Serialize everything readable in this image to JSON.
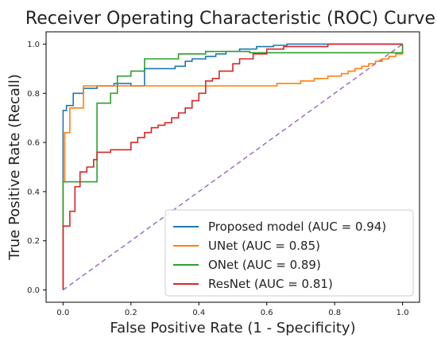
{
  "chart_data": {
    "type": "line",
    "title": "Receiver Operating Characteristic (ROC) Curve",
    "xlabel": "False Positive Rate (1 - Specificity)",
    "ylabel": "True Positive Rate (Recall)",
    "xlim": [
      -0.05,
      1.05
    ],
    "ylim": [
      -0.05,
      1.05
    ],
    "x_ticks": [
      0.0,
      0.2,
      0.4,
      0.6,
      0.8,
      1.0
    ],
    "x_tick_labels": [
      "0.0",
      "0.2",
      "0.4",
      "0.6",
      "0.8",
      "1.0"
    ],
    "y_ticks": [
      0.0,
      0.2,
      0.4,
      0.6,
      0.8,
      1.0
    ],
    "y_tick_labels": [
      "0.0",
      "0.2",
      "0.4",
      "0.6",
      "0.8",
      "1.0"
    ],
    "grid": false,
    "legend_position": "lower-right",
    "reference_line": {
      "x": [
        0,
        1
      ],
      "y": [
        0,
        1
      ],
      "color": "#9467bd",
      "style": "dashed"
    },
    "series": [
      {
        "name": "Proposed model (AUC = 0.94)",
        "color": "#1f77b4",
        "x": [
          0,
          0,
          0.01,
          0.01,
          0.03,
          0.03,
          0.06,
          0.06,
          0.1,
          0.1,
          0.15,
          0.15,
          0.2,
          0.2,
          0.24,
          0.24,
          0.33,
          0.33,
          0.36,
          0.36,
          0.38,
          0.38,
          0.42,
          0.42,
          0.45,
          0.45,
          0.48,
          0.48,
          0.52,
          0.52,
          0.57,
          0.57,
          0.62,
          0.62,
          0.66,
          0.66,
          1.0
        ],
        "y": [
          0,
          0.73,
          0.73,
          0.75,
          0.75,
          0.8,
          0.8,
          0.82,
          0.82,
          0.83,
          0.83,
          0.84,
          0.84,
          0.83,
          0.83,
          0.9,
          0.9,
          0.91,
          0.91,
          0.93,
          0.93,
          0.94,
          0.94,
          0.95,
          0.95,
          0.96,
          0.96,
          0.97,
          0.97,
          0.98,
          0.98,
          0.99,
          0.99,
          0.995,
          0.995,
          1.0,
          1.0
        ]
      },
      {
        "name": "UNet (AUC = 0.85)",
        "color": "#ff7f0e",
        "x": [
          0,
          0,
          0.005,
          0.005,
          0.02,
          0.02,
          0.06,
          0.06,
          0.63,
          0.63,
          0.7,
          0.7,
          0.74,
          0.74,
          0.78,
          0.78,
          0.82,
          0.82,
          0.84,
          0.84,
          0.86,
          0.86,
          0.88,
          0.88,
          0.9,
          0.9,
          0.92,
          0.92,
          0.94,
          0.94,
          0.96,
          0.96,
          0.98,
          0.98,
          1.0,
          1.0
        ],
        "y": [
          0,
          0.44,
          0.44,
          0.64,
          0.64,
          0.74,
          0.74,
          0.83,
          0.83,
          0.84,
          0.84,
          0.85,
          0.85,
          0.86,
          0.86,
          0.87,
          0.87,
          0.88,
          0.88,
          0.89,
          0.89,
          0.9,
          0.9,
          0.91,
          0.91,
          0.92,
          0.92,
          0.93,
          0.93,
          0.94,
          0.94,
          0.95,
          0.95,
          0.96,
          0.96,
          1.0
        ]
      },
      {
        "name": "ONet (AUC = 0.89)",
        "color": "#2ca02c",
        "x": [
          0,
          0,
          0.1,
          0.1,
          0.14,
          0.14,
          0.16,
          0.16,
          0.2,
          0.2,
          0.24,
          0.24,
          0.34,
          0.34,
          0.42,
          0.42,
          0.55,
          0.55,
          1.0,
          1.0
        ],
        "y": [
          0,
          0.44,
          0.44,
          0.76,
          0.76,
          0.8,
          0.8,
          0.87,
          0.87,
          0.89,
          0.89,
          0.94,
          0.94,
          0.96,
          0.96,
          0.97,
          0.97,
          0.965,
          0.965,
          1.0
        ]
      },
      {
        "name": "ResNet (AUC = 0.81)",
        "color": "#d62728",
        "x": [
          0,
          0,
          0.02,
          0.02,
          0.035,
          0.035,
          0.05,
          0.05,
          0.07,
          0.07,
          0.09,
          0.09,
          0.1,
          0.1,
          0.14,
          0.14,
          0.2,
          0.2,
          0.22,
          0.22,
          0.24,
          0.24,
          0.26,
          0.26,
          0.28,
          0.28,
          0.3,
          0.3,
          0.32,
          0.32,
          0.34,
          0.34,
          0.36,
          0.36,
          0.38,
          0.38,
          0.4,
          0.4,
          0.42,
          0.42,
          0.44,
          0.44,
          0.46,
          0.46,
          0.5,
          0.5,
          0.52,
          0.52,
          0.56,
          0.56,
          0.6,
          0.6,
          0.65,
          0.65,
          0.78,
          0.78,
          1.0,
          1.0
        ],
        "y": [
          0,
          0.26,
          0.26,
          0.32,
          0.32,
          0.42,
          0.42,
          0.48,
          0.48,
          0.5,
          0.5,
          0.53,
          0.53,
          0.56,
          0.56,
          0.57,
          0.57,
          0.6,
          0.6,
          0.62,
          0.62,
          0.64,
          0.64,
          0.66,
          0.66,
          0.67,
          0.67,
          0.68,
          0.68,
          0.7,
          0.7,
          0.72,
          0.72,
          0.74,
          0.74,
          0.77,
          0.77,
          0.8,
          0.8,
          0.85,
          0.85,
          0.86,
          0.86,
          0.89,
          0.89,
          0.92,
          0.92,
          0.94,
          0.94,
          0.96,
          0.96,
          0.98,
          0.98,
          0.99,
          0.99,
          1.0,
          1.0,
          1.0
        ]
      }
    ]
  }
}
